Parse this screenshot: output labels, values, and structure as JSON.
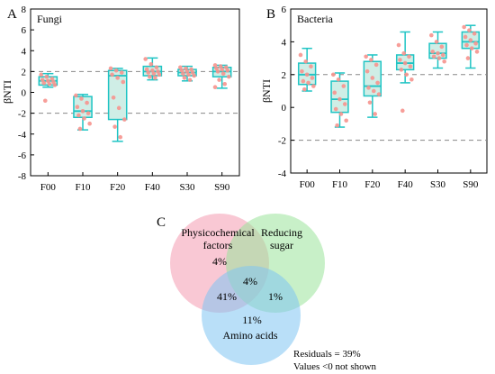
{
  "chart_data": [
    {
      "type": "box",
      "panel_label": "A",
      "title": "Fungi",
      "ylabel": "βNTI",
      "ylim": [
        -8,
        8
      ],
      "yticks": [
        -8,
        -6,
        -4,
        -2,
        0,
        2,
        4,
        6,
        8
      ],
      "reference_lines": [
        2,
        -2
      ],
      "categories": [
        "F00",
        "F10",
        "F20",
        "F40",
        "S30",
        "S90"
      ],
      "boxes": [
        {
          "min": 0.5,
          "q1": 0.7,
          "median": 1.1,
          "q3": 1.5,
          "max": 1.8
        },
        {
          "min": -3.6,
          "q1": -2.4,
          "median": -1.8,
          "q3": -0.4,
          "max": -0.2
        },
        {
          "min": -4.7,
          "q1": -2.6,
          "median": 1.6,
          "q3": 2.1,
          "max": 2.3
        },
        {
          "min": 1.2,
          "q1": 1.6,
          "median": 2.0,
          "q3": 2.5,
          "max": 3.3
        },
        {
          "min": 1.1,
          "q1": 1.6,
          "median": 1.9,
          "q3": 2.2,
          "max": 2.5
        },
        {
          "min": 0.4,
          "q1": 1.5,
          "median": 2.0,
          "q3": 2.4,
          "max": 2.6
        }
      ],
      "points": [
        [
          1.7,
          1.5,
          1.3,
          1.2,
          1.1,
          1.0,
          0.9,
          0.8,
          0.7,
          -0.8
        ],
        [
          -0.3,
          -0.6,
          -1.0,
          -1.4,
          -1.8,
          -2.0,
          -2.2,
          -2.5,
          -3.0,
          -3.5
        ],
        [
          2.3,
          2.1,
          1.9,
          1.7,
          1.4,
          1.0,
          -0.5,
          -1.5,
          -2.6,
          -3.3,
          -4.3
        ],
        [
          3.2,
          2.7,
          2.4,
          2.2,
          2.1,
          2.0,
          1.9,
          1.8,
          1.7,
          1.5,
          1.4
        ],
        [
          2.4,
          2.3,
          2.2,
          2.1,
          2.0,
          1.9,
          1.8,
          1.7,
          1.6,
          1.4,
          1.2
        ],
        [
          2.6,
          2.5,
          2.4,
          2.3,
          2.2,
          2.1,
          2.0,
          1.8,
          1.5,
          1.2,
          0.8,
          0.5
        ]
      ]
    },
    {
      "type": "box",
      "panel_label": "B",
      "title": "Bacteria",
      "ylabel": "βNTI",
      "ylim": [
        -4,
        6
      ],
      "yticks": [
        -4,
        -2,
        0,
        2,
        4,
        6
      ],
      "reference_lines": [
        2,
        -2
      ],
      "categories": [
        "F00",
        "F10",
        "F20",
        "F40",
        "S30",
        "S90"
      ],
      "boxes": [
        {
          "min": 1.0,
          "q1": 1.4,
          "median": 2.0,
          "q3": 2.7,
          "max": 3.6
        },
        {
          "min": -1.2,
          "q1": -0.3,
          "median": 0.5,
          "q3": 1.6,
          "max": 2.1
        },
        {
          "min": -0.6,
          "q1": 0.7,
          "median": 1.3,
          "q3": 2.8,
          "max": 3.2
        },
        {
          "min": 1.5,
          "q1": 2.3,
          "median": 2.7,
          "q3": 3.2,
          "max": 4.6
        },
        {
          "min": 2.4,
          "q1": 3.0,
          "median": 3.3,
          "q3": 3.9,
          "max": 4.6
        },
        {
          "min": 2.4,
          "q1": 3.6,
          "median": 4.0,
          "q3": 4.6,
          "max": 5.0
        }
      ],
      "points": [
        [
          3.2,
          2.8,
          2.5,
          2.2,
          2.0,
          1.8,
          1.6,
          1.5,
          1.3,
          1.1
        ],
        [
          2.0,
          1.7,
          1.3,
          0.9,
          0.5,
          0.2,
          -0.1,
          -0.4,
          -0.8,
          -1.1
        ],
        [
          3.1,
          2.9,
          2.6,
          2.2,
          1.8,
          1.5,
          1.2,
          1.0,
          0.8,
          0.3,
          -0.4
        ],
        [
          3.8,
          3.3,
          3.1,
          2.9,
          2.7,
          2.5,
          2.3,
          2.0,
          1.7,
          -0.2
        ],
        [
          4.4,
          4.0,
          3.7,
          3.4,
          3.3,
          3.2,
          3.1,
          3.0,
          2.8
        ],
        [
          4.9,
          4.7,
          4.5,
          4.3,
          4.1,
          3.9,
          3.8,
          3.6,
          3.4,
          3.0
        ]
      ]
    }
  ],
  "venn": {
    "panel_label": "C",
    "circles": [
      {
        "label_lines": [
          "Physicochemical",
          "factors"
        ],
        "color": "#f49ab0"
      },
      {
        "label_lines": [
          "Reducing",
          "sugar"
        ],
        "color": "#9be39b"
      },
      {
        "label_lines": [
          "Amino acids"
        ],
        "color": "#7fc4f2"
      }
    ],
    "regions": {
      "physico_only": "4%",
      "all_three": "4%",
      "physico_amino": "41%",
      "sugar_amino": "1%",
      "amino_only": "11%"
    },
    "residuals_text": "Residuals = 39%",
    "note_text": "Values <0 not shown"
  },
  "colors": {
    "box_fill": "#cfeee6",
    "box_edge": "#1fc4c4",
    "point": "#f6948e",
    "refline": "#888888"
  }
}
